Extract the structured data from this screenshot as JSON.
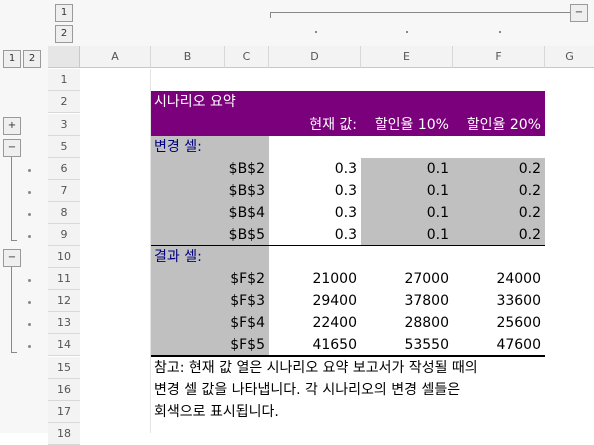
{
  "outline_level_buttons_top": [
    "1",
    "2"
  ],
  "outline_level_buttons_left": [
    "1",
    "2"
  ],
  "collapse_symbol": "−",
  "expand_symbol": "+",
  "columns": [
    "A",
    "B",
    "C",
    "D",
    "E",
    "F",
    "G"
  ],
  "rows": [
    "1",
    "2",
    "3",
    "5",
    "6",
    "7",
    "8",
    "9",
    "10",
    "11",
    "12",
    "13",
    "14",
    "15",
    "16",
    "17",
    "18"
  ],
  "scenario": {
    "title": "시나리오 요약",
    "header": {
      "current": "현재 값:",
      "s1": "할인율 10%",
      "s2": "할인율 20%"
    },
    "changing_label": "변경 셀:",
    "changing_rows": [
      {
        "ref": "$B$2",
        "current": "0.3",
        "s1": "0.1",
        "s2": "0.2"
      },
      {
        "ref": "$B$3",
        "current": "0.3",
        "s1": "0.1",
        "s2": "0.2"
      },
      {
        "ref": "$B$4",
        "current": "0.3",
        "s1": "0.1",
        "s2": "0.2"
      },
      {
        "ref": "$B$5",
        "current": "0.3",
        "s1": "0.1",
        "s2": "0.2"
      }
    ],
    "result_label": "결과 셀:",
    "result_rows": [
      {
        "ref": "$F$2",
        "current": "21000",
        "s1": "27000",
        "s2": "24000"
      },
      {
        "ref": "$F$3",
        "current": "29400",
        "s1": "37800",
        "s2": "33600"
      },
      {
        "ref": "$F$4",
        "current": "22400",
        "s1": "28800",
        "s2": "25600"
      },
      {
        "ref": "$F$5",
        "current": "41650",
        "s1": "53550",
        "s2": "47600"
      }
    ],
    "notes": [
      "참고: 현재 값 열은 시나리오 요약 보고서가 작성될 때의",
      "변경 셀 값을 나타냅니다. 각 시나리오의 변경 셀들은",
      "회색으로 표시됩니다."
    ]
  },
  "colors": {
    "title_bg": "#7B007B",
    "changing_fill": "#C0C0C0",
    "label_text": "#000080"
  }
}
